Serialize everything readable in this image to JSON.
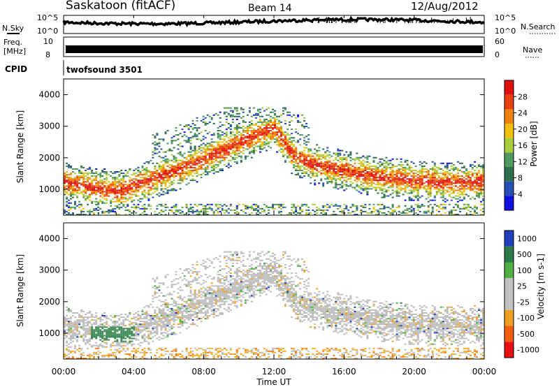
{
  "header": {
    "station": "Saskatoon (fitACF)",
    "beam": "Beam 14",
    "date": "12/Aug/2012"
  },
  "strips": {
    "nsky_label": "N.Sky",
    "nsearch_label": "N.Search",
    "freq_label_1": "Freq.",
    "freq_label_2": "[MHz]",
    "nave_label": "Nave",
    "cpid_label": "CPID",
    "cpid_value": "twofsound 3501",
    "noise_tick_top": "10^5",
    "noise_tick_bottom": "10^0",
    "freq_tick_top": "10",
    "freq_tick_bottom": "8",
    "nave_tick_top": "60",
    "nave_tick_bottom": "0"
  },
  "chart_data": [
    {
      "type": "heatmap",
      "title": "",
      "xlabel": "Time UT",
      "ylabel": "Slant Range [km]",
      "xlim": [
        "00:00",
        "24:00"
      ],
      "x_ticks": [
        "00:00",
        "04:00",
        "08:00",
        "12:00",
        "16:00",
        "20:00",
        "00:00"
      ],
      "ylim": [
        180,
        4500
      ],
      "y_ticks": [
        1000,
        2000,
        3000,
        4000
      ],
      "colorbar": {
        "label": "Power [dB]",
        "ticks": [
          4,
          8,
          12,
          16,
          20,
          24,
          28
        ],
        "range": [
          0,
          30
        ],
        "colors": [
          "#1010e0",
          "#2850b8",
          "#2f6e4e",
          "#4f9a60",
          "#a8cc3c",
          "#f0c010",
          "#f08010",
          "#e84010",
          "#e01010"
        ]
      },
      "main_echo_band_km": [
        {
          "t": 0,
          "r": 1200
        },
        {
          "t": 2,
          "r": 1000
        },
        {
          "t": 3,
          "r": 900
        },
        {
          "t": 5,
          "r": 1300
        },
        {
          "t": 7,
          "r": 1700
        },
        {
          "t": 9,
          "r": 2200
        },
        {
          "t": 11,
          "r": 2700
        },
        {
          "t": 12,
          "r": 2900
        },
        {
          "t": 13,
          "r": 2100
        },
        {
          "t": 14,
          "r": 1800
        },
        {
          "t": 16,
          "r": 1550
        },
        {
          "t": 18,
          "r": 1350
        },
        {
          "t": 20,
          "r": 1250
        },
        {
          "t": 22,
          "r": 1200
        },
        {
          "t": 24,
          "r": 1200
        }
      ]
    },
    {
      "type": "heatmap",
      "title": "",
      "xlabel": "Time UT",
      "ylabel": "Slant Range [km]",
      "xlim": [
        "00:00",
        "24:00"
      ],
      "x_ticks": [
        "00:00",
        "04:00",
        "08:00",
        "12:00",
        "16:00",
        "20:00",
        "00:00"
      ],
      "ylim": [
        180,
        4500
      ],
      "y_ticks": [
        1000,
        2000,
        3000,
        4000
      ],
      "colorbar": {
        "label": "Velocity [m s-1]",
        "ticks": [
          "1000",
          "500",
          "100",
          "25",
          "-25",
          "-100",
          "-500",
          "-1000"
        ],
        "colors": [
          "#2040c0",
          "#2d7a4a",
          "#50b040",
          "#c0c0c0",
          "#c0c0c0",
          "#f0a020",
          "#f06010",
          "#e81010"
        ]
      }
    }
  ]
}
